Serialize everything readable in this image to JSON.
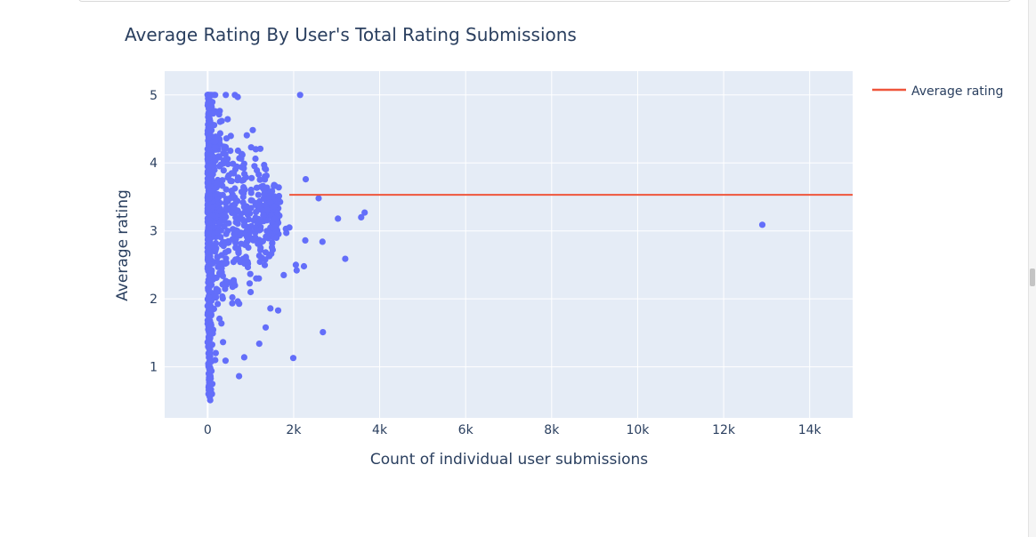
{
  "colors": {
    "plot_bg": "#e5ecf6",
    "grid": "#ffffff",
    "text": "#2a3f5f",
    "scatter": "#636efa",
    "line": "#ef553b"
  },
  "chart_data": {
    "type": "scatter",
    "title": "Average Rating By User's Total Rating Submissions",
    "xlabel": "Count of individual user submissions",
    "ylabel": "Average rating",
    "xlim": [
      -1000,
      15000
    ],
    "ylim": [
      0.25,
      5.35
    ],
    "x_ticks": [
      0,
      2000,
      4000,
      6000,
      8000,
      10000,
      12000,
      14000
    ],
    "x_tick_labels": [
      "0",
      "2k",
      "4k",
      "6k",
      "8k",
      "10k",
      "12k",
      "14k"
    ],
    "y_ticks": [
      1,
      2,
      3,
      4,
      5
    ],
    "y_tick_labels": [
      "1",
      "2",
      "3",
      "4",
      "5"
    ],
    "grid": true,
    "legend": {
      "position": "top-right",
      "entries": [
        "Average rating"
      ]
    },
    "mean_line": {
      "name": "Average rating",
      "y": 3.53
    },
    "notable_points": [
      {
        "x": 12900,
        "y": 3.09
      },
      {
        "x": 2150,
        "y": 5.0
      },
      {
        "x": 700,
        "y": 4.97
      },
      {
        "x": 2280,
        "y": 3.76
      },
      {
        "x": 2580,
        "y": 3.48
      },
      {
        "x": 3650,
        "y": 3.27
      },
      {
        "x": 3570,
        "y": 3.2
      },
      {
        "x": 3030,
        "y": 3.18
      },
      {
        "x": 2270,
        "y": 2.86
      },
      {
        "x": 2670,
        "y": 2.84
      },
      {
        "x": 3200,
        "y": 2.59
      },
      {
        "x": 2050,
        "y": 2.5
      },
      {
        "x": 2240,
        "y": 2.48
      },
      {
        "x": 2070,
        "y": 2.42
      },
      {
        "x": 1770,
        "y": 2.35
      },
      {
        "x": 1820,
        "y": 3.03
      },
      {
        "x": 1900,
        "y": 3.05
      },
      {
        "x": 1830,
        "y": 2.97
      },
      {
        "x": 1460,
        "y": 1.86
      },
      {
        "x": 1640,
        "y": 1.83
      },
      {
        "x": 1350,
        "y": 1.58
      },
      {
        "x": 2680,
        "y": 1.51
      },
      {
        "x": 1200,
        "y": 1.34
      },
      {
        "x": 1990,
        "y": 1.13
      },
      {
        "x": 850,
        "y": 1.14
      },
      {
        "x": 1120,
        "y": 4.2
      },
      {
        "x": 1330,
        "y": 3.92
      },
      {
        "x": 1190,
        "y": 2.3
      },
      {
        "x": 1600,
        "y": 2.9
      },
      {
        "x": 1000,
        "y": 2.1
      },
      {
        "x": 60,
        "y": 0.51
      },
      {
        "x": 100,
        "y": 0.6
      },
      {
        "x": 110,
        "y": 0.75
      }
    ]
  }
}
